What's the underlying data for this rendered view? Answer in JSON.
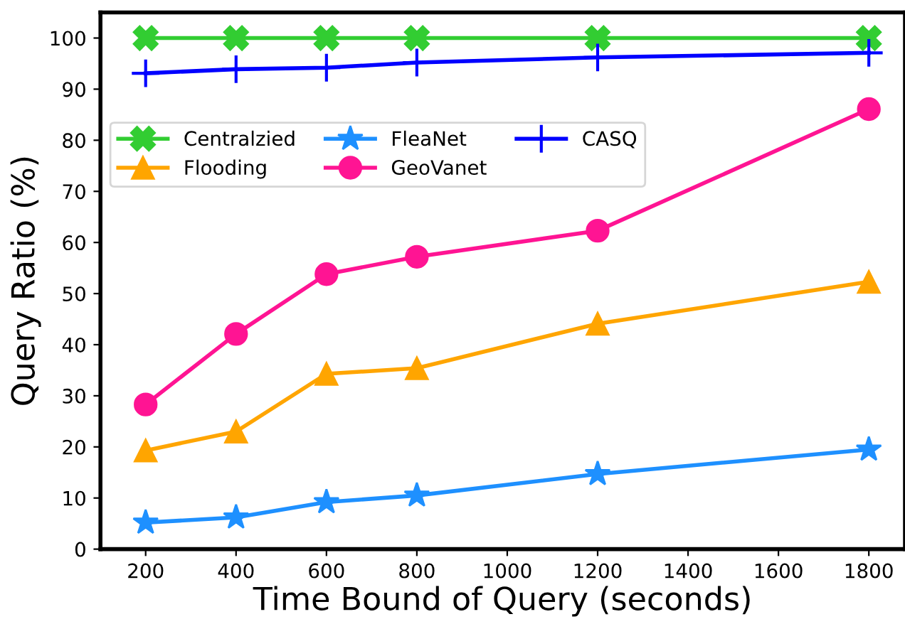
{
  "chart_data": {
    "type": "line",
    "xlabel": "Time Bound of Query (seconds)",
    "ylabel": "Query Ratio (%)",
    "x": [
      200,
      400,
      600,
      800,
      1200,
      1800
    ],
    "series": [
      {
        "name": "Centralzied",
        "color": "#32cd32",
        "marker": "cross",
        "values": [
          100,
          100,
          100,
          100,
          100,
          100
        ]
      },
      {
        "name": "Flooding",
        "color": "#ffa500",
        "marker": "triangle",
        "values": [
          19.3,
          23.0,
          34.3,
          35.4,
          44.1,
          52.3
        ]
      },
      {
        "name": "FleaNet",
        "color": "#1e90ff",
        "marker": "star",
        "values": [
          5.2,
          6.2,
          9.2,
          10.5,
          14.7,
          19.5
        ]
      },
      {
        "name": "GeoVanet",
        "color": "#ff1493",
        "marker": "circle",
        "values": [
          28.3,
          42.1,
          53.8,
          57.2,
          62.3,
          86.1
        ]
      },
      {
        "name": "CASQ",
        "color": "#0000ff",
        "marker": "plus",
        "values": [
          93.1,
          93.9,
          94.2,
          95.2,
          96.2,
          97.1
        ]
      }
    ],
    "xlim": [
      100,
      1880
    ],
    "ylim": [
      0,
      105
    ],
    "xticks": [
      200,
      400,
      600,
      800,
      1000,
      1200,
      1400,
      1600,
      1800
    ],
    "yticks": [
      0,
      10,
      20,
      30,
      40,
      50,
      60,
      70,
      80,
      90,
      100
    ],
    "grid": false,
    "legend": "left",
    "line_style": "solid"
  }
}
